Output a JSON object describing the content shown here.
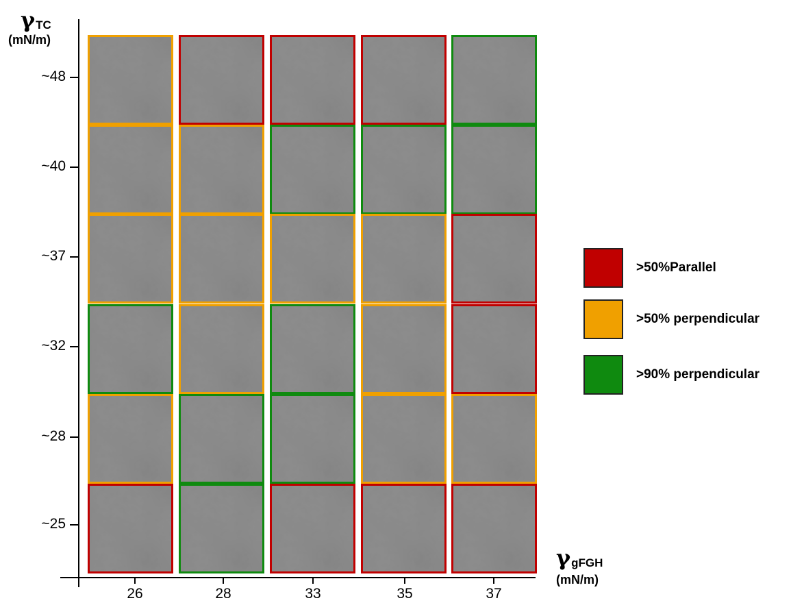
{
  "axes": {
    "y": {
      "symbol": "γ",
      "subscript": "TC",
      "unit": "(mN/m)",
      "ticks": [
        "~48",
        "~40",
        "~37",
        "~32",
        "~28",
        "~25"
      ]
    },
    "x": {
      "symbol": "γ",
      "subscript": "gFGH",
      "unit": "(mN/m)",
      "ticks": [
        "26",
        "28",
        "33",
        "35",
        "37"
      ]
    }
  },
  "legend": [
    {
      "key": "parallel",
      "label": ">50%Parallel",
      "color": "#c00000"
    },
    {
      "key": "perp50",
      "label": ">50% perpendicular",
      "color": "#f0a000"
    },
    {
      "key": "perp90",
      "label": ">90% perpendicular",
      "color": "#0f8a0f"
    }
  ],
  "grid": {
    "rows": [
      {
        "y": "~48",
        "cells": [
          "perp50",
          "parallel",
          "parallel",
          "parallel",
          "perp90"
        ]
      },
      {
        "y": "~40",
        "cells": [
          "perp50",
          "perp50",
          "perp90",
          "perp90",
          "perp90"
        ]
      },
      {
        "y": "~37",
        "cells": [
          "perp50",
          "perp50",
          "perp50",
          "perp50",
          "parallel"
        ]
      },
      {
        "y": "~32",
        "cells": [
          "perp90",
          "perp50",
          "perp90",
          "perp50",
          "parallel"
        ]
      },
      {
        "y": "~28",
        "cells": [
          "perp50",
          "perp90",
          "perp90",
          "perp50",
          "perp50"
        ]
      },
      {
        "y": "~25",
        "cells": [
          "parallel",
          "perp90",
          "parallel",
          "parallel",
          "parallel"
        ]
      }
    ]
  }
}
